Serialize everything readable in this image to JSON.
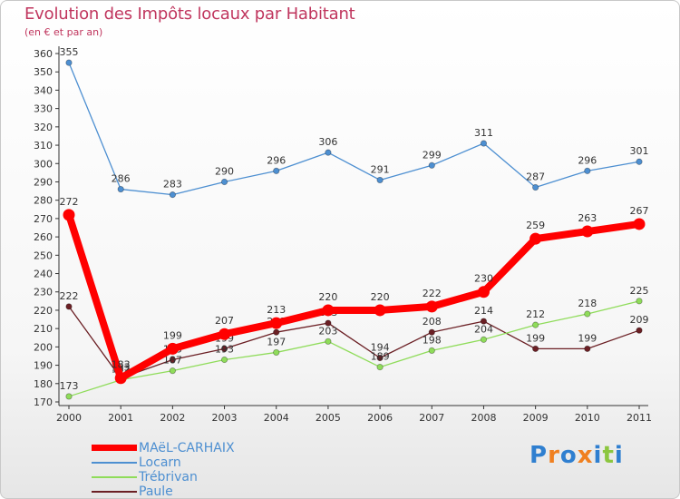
{
  "title": "Evolution des Impôts locaux par Habitant",
  "subtitle": "(en € et par an)",
  "logo_text": "Proxiti",
  "chart_data": {
    "type": "line",
    "title": "Evolution des Impôts locaux par Habitant",
    "subtitle": "(en € et par an)",
    "xlabel": "",
    "ylabel": "",
    "ylim": [
      170,
      360
    ],
    "ytick_step": 10,
    "grid": false,
    "legend_position": "bottom-left",
    "categories": [
      "2000",
      "2001",
      "2002",
      "2003",
      "2004",
      "2005",
      "2006",
      "2007",
      "2008",
      "2009",
      "2010",
      "2011"
    ],
    "series": [
      {
        "name": "Paule",
        "color": "#6b1f24",
        "values": [
          222,
          183,
          193,
          199,
          208,
          213,
          194,
          208,
          214,
          199,
          199,
          209
        ],
        "labels": [
          "222",
          "183",
          "193",
          "199",
          "208",
          "213",
          "194",
          "208",
          "214",
          "199",
          "199",
          "209"
        ]
      },
      {
        "name": "Trébrivan",
        "color": "#8fdc5a",
        "values": [
          173,
          182,
          187,
          193,
          197,
          203,
          189,
          198,
          204,
          212,
          218,
          225
        ],
        "labels": [
          "173",
          "182",
          "187",
          "193",
          "197",
          "203",
          "189",
          "198",
          "204",
          "212",
          "218",
          "225"
        ]
      },
      {
        "name": "Locarn",
        "color": "#4d8fd1",
        "values": [
          355,
          286,
          283,
          290,
          296,
          306,
          291,
          299,
          311,
          287,
          296,
          301
        ],
        "labels": [
          "355",
          "286",
          "283",
          "290",
          "296",
          "306",
          "291",
          "299",
          "311",
          "287",
          "296",
          "301"
        ]
      },
      {
        "name": "MAëL-CARHAIX",
        "color": "#ff0000",
        "values": [
          272,
          183,
          199,
          207,
          213,
          220,
          220,
          222,
          230,
          259,
          263,
          267
        ],
        "labels": [
          "272",
          "183",
          "199",
          "207",
          "213",
          "220",
          "220",
          "222",
          "230",
          "259",
          "263",
          "267"
        ]
      }
    ]
  },
  "legend": [
    {
      "label": "MAëL-CARHAIX",
      "color": "#ff0000"
    },
    {
      "label": "Locarn",
      "color": "#4d8fd1"
    },
    {
      "label": "Trébrivan",
      "color": "#8fdc5a"
    },
    {
      "label": "Paule",
      "color": "#6b1f24"
    }
  ]
}
